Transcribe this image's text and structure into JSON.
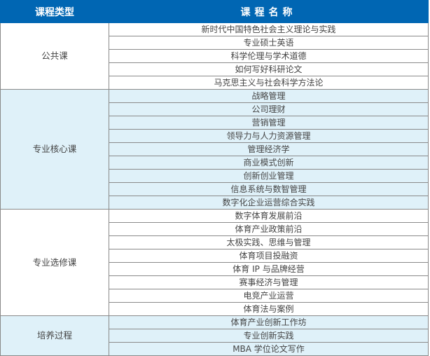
{
  "header": {
    "type_label": "课程类型",
    "name_label": "课程名称"
  },
  "colors": {
    "header_bg": "#0066b3",
    "alt_row_bg": "#dff1f9"
  },
  "groups": [
    {
      "category": "公共课",
      "courses": [
        "新时代中国特色社会主义理论与实践",
        "专业硕士英语",
        "科学伦理与学术道德",
        "如何写好科研论文",
        "马克思主义与社会科学方法论"
      ]
    },
    {
      "category": "专业核心课",
      "courses": [
        "战略管理",
        "公司理财",
        "营销管理",
        "领导力与人力资源管理",
        "管理经济学",
        "商业模式创新",
        "创新创业管理",
        "信息系统与数智管理",
        "数字化企业运营综合实践"
      ]
    },
    {
      "category": "专业选修课",
      "courses": [
        "数字体育发展前沿",
        "体育产业政策前沿",
        "太极实践、思维与管理",
        "体育项目投融资",
        "体育 IP 与品牌经营",
        "赛事经济与管理",
        "电竞产业运营",
        "体育法与案例"
      ]
    },
    {
      "category": "培养过程",
      "courses": [
        "体育产业创新工作坊",
        "专业创新实践",
        "MBA 学位论文写作"
      ]
    }
  ]
}
